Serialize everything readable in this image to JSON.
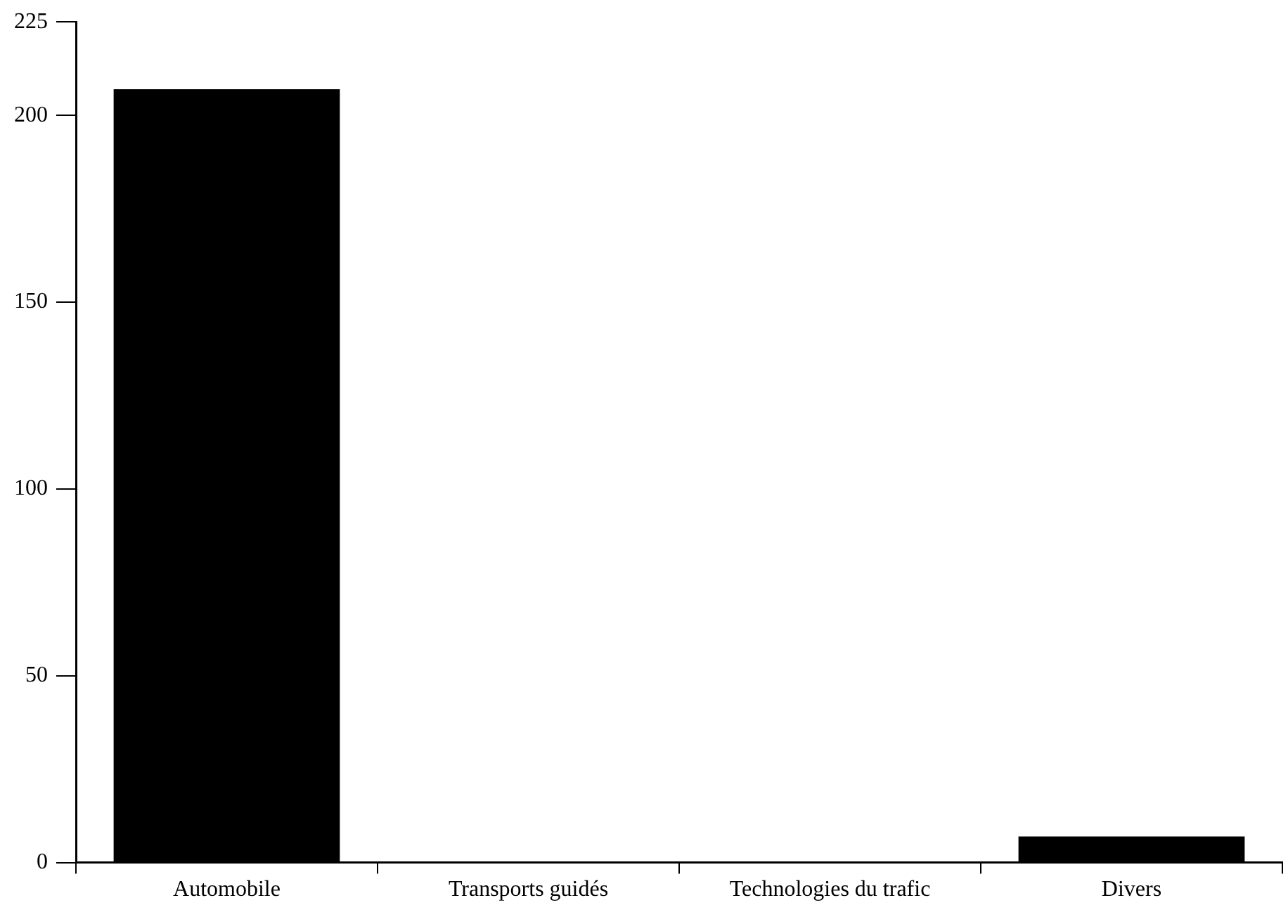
{
  "chart_data": {
    "type": "bar",
    "categories": [
      "Automobile",
      "Transports guidés",
      "Technologies du trafic",
      "Divers"
    ],
    "values": [
      207,
      0,
      0,
      7
    ],
    "color": "#000000",
    "ylim": [
      0,
      225
    ],
    "yticks": [
      0,
      50,
      100,
      150,
      200,
      225
    ],
    "grid": false,
    "legend": false
  }
}
